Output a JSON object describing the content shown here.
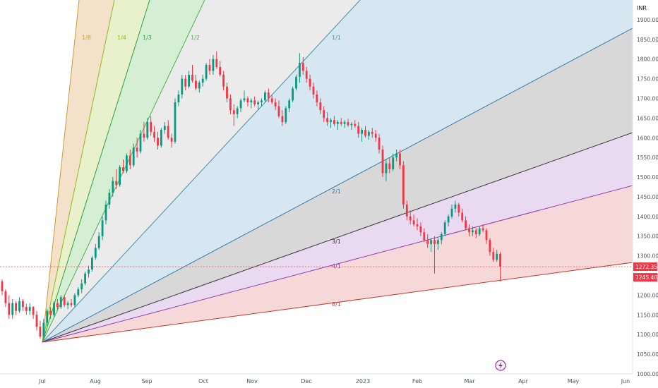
{
  "chart_data": {
    "type": "candlestick",
    "currency": "INR",
    "y_range": [
      1000,
      1950
    ],
    "y_ticks": [
      "1000.00",
      "1050.00",
      "1100.00",
      "1150.00",
      "1200.00",
      "1250.00",
      "1300.00",
      "1350.00",
      "1400.00",
      "1450.00",
      "1500.00",
      "1550.00",
      "1600.00",
      "1650.00",
      "1700.00",
      "1750.00",
      "1800.00",
      "1850.00",
      "1900.00"
    ],
    "x_labels": [
      "Jul",
      "Aug",
      "Sep",
      "Oct",
      "Nov",
      "Dec",
      "2023",
      "Feb",
      "Mar",
      "Apr",
      "May",
      "Jun"
    ],
    "price_tags": [
      {
        "label": "1272.35",
        "value": 1272.35,
        "color": "#f23645"
      },
      {
        "label": "1245.40",
        "value": 1245.4,
        "color": "#f23645"
      }
    ],
    "gann_fan": {
      "origin": {
        "date": "2022-07-01",
        "price": 1075
      },
      "lines": [
        {
          "label": "1/8",
          "color": "#c89b3c",
          "fill": "#f2dcc0"
        },
        {
          "label": "1/4",
          "color": "#8fb81a",
          "fill": "#e4efc2"
        },
        {
          "label": "1/3",
          "color": "#2e9f3c",
          "fill": "#cdeccd"
        },
        {
          "label": "1/2",
          "color": "#4caf50",
          "fill": "#e8e8e8"
        },
        {
          "label": "1/1",
          "color": "#4a8fa8",
          "fill": "#cfe3ef"
        },
        {
          "label": "2/1",
          "color": "#2f7da8",
          "fill": "#d1d1d1"
        },
        {
          "label": "3/1",
          "color": "#333333",
          "fill": "#e5d2ee"
        },
        {
          "label": "4/1",
          "color": "#8e3bb0",
          "fill": "#f3d1d0"
        },
        {
          "label": "8/1",
          "color": "#c0392b",
          "fill": ""
        }
      ]
    },
    "candles": [
      [
        1235,
        1240,
        1200,
        1210
      ],
      [
        1210,
        1215,
        1170,
        1180
      ],
      [
        1180,
        1200,
        1140,
        1150
      ],
      [
        1150,
        1190,
        1140,
        1180
      ],
      [
        1180,
        1185,
        1150,
        1160
      ],
      [
        1160,
        1195,
        1155,
        1185
      ],
      [
        1185,
        1190,
        1160,
        1170
      ],
      [
        1170,
        1178,
        1150,
        1160
      ],
      [
        1160,
        1180,
        1150,
        1170
      ],
      [
        1170,
        1172,
        1140,
        1150
      ],
      [
        1150,
        1160,
        1110,
        1120
      ],
      [
        1120,
        1135,
        1090,
        1095
      ],
      [
        1095,
        1140,
        1090,
        1130
      ],
      [
        1130,
        1165,
        1120,
        1160
      ],
      [
        1160,
        1170,
        1140,
        1150
      ],
      [
        1150,
        1185,
        1145,
        1180
      ],
      [
        1180,
        1190,
        1160,
        1170
      ],
      [
        1170,
        1200,
        1165,
        1195
      ],
      [
        1195,
        1200,
        1170,
        1175
      ],
      [
        1175,
        1185,
        1165,
        1180
      ],
      [
        1180,
        1190,
        1170,
        1175
      ],
      [
        1175,
        1205,
        1170,
        1200
      ],
      [
        1200,
        1220,
        1195,
        1215
      ],
      [
        1215,
        1240,
        1205,
        1230
      ],
      [
        1230,
        1260,
        1225,
        1255
      ],
      [
        1255,
        1275,
        1245,
        1265
      ],
      [
        1265,
        1300,
        1260,
        1295
      ],
      [
        1295,
        1330,
        1290,
        1320
      ],
      [
        1320,
        1360,
        1315,
        1350
      ],
      [
        1350,
        1400,
        1340,
        1390
      ],
      [
        1390,
        1440,
        1380,
        1430
      ],
      [
        1430,
        1470,
        1420,
        1460
      ],
      [
        1460,
        1500,
        1450,
        1490
      ],
      [
        1490,
        1520,
        1470,
        1480
      ],
      [
        1480,
        1530,
        1475,
        1525
      ],
      [
        1525,
        1545,
        1510,
        1515
      ],
      [
        1515,
        1560,
        1510,
        1555
      ],
      [
        1555,
        1570,
        1520,
        1530
      ],
      [
        1530,
        1585,
        1525,
        1575
      ],
      [
        1575,
        1600,
        1550,
        1565
      ],
      [
        1565,
        1620,
        1560,
        1610
      ],
      [
        1610,
        1640,
        1590,
        1600
      ],
      [
        1600,
        1650,
        1595,
        1640
      ],
      [
        1640,
        1655,
        1605,
        1615
      ],
      [
        1615,
        1630,
        1590,
        1600
      ],
      [
        1600,
        1615,
        1570,
        1580
      ],
      [
        1580,
        1625,
        1575,
        1620
      ],
      [
        1620,
        1640,
        1610,
        1630
      ],
      [
        1630,
        1645,
        1595,
        1600
      ],
      [
        1600,
        1610,
        1575,
        1590
      ],
      [
        1590,
        1700,
        1585,
        1690
      ],
      [
        1690,
        1720,
        1680,
        1710
      ],
      [
        1710,
        1760,
        1700,
        1750
      ],
      [
        1750,
        1760,
        1720,
        1730
      ],
      [
        1730,
        1770,
        1725,
        1760
      ],
      [
        1760,
        1785,
        1740,
        1745
      ],
      [
        1745,
        1760,
        1720,
        1725
      ],
      [
        1725,
        1745,
        1715,
        1740
      ],
      [
        1740,
        1760,
        1730,
        1750
      ],
      [
        1750,
        1790,
        1745,
        1785
      ],
      [
        1785,
        1800,
        1760,
        1770
      ],
      [
        1770,
        1810,
        1760,
        1800
      ],
      [
        1800,
        1820,
        1775,
        1780
      ],
      [
        1780,
        1795,
        1755,
        1760
      ],
      [
        1760,
        1770,
        1720,
        1730
      ],
      [
        1730,
        1740,
        1690,
        1700
      ],
      [
        1700,
        1710,
        1660,
        1670
      ],
      [
        1670,
        1685,
        1630,
        1660
      ],
      [
        1660,
        1680,
        1650,
        1675
      ],
      [
        1675,
        1700,
        1665,
        1695
      ],
      [
        1695,
        1720,
        1690,
        1700
      ],
      [
        1700,
        1705,
        1680,
        1690
      ],
      [
        1690,
        1700,
        1675,
        1695
      ],
      [
        1695,
        1705,
        1680,
        1685
      ],
      [
        1685,
        1695,
        1670,
        1690
      ],
      [
        1690,
        1700,
        1680,
        1695
      ],
      [
        1695,
        1720,
        1690,
        1715
      ],
      [
        1715,
        1725,
        1690,
        1700
      ],
      [
        1700,
        1710,
        1685,
        1690
      ],
      [
        1690,
        1700,
        1670,
        1680
      ],
      [
        1680,
        1695,
        1650,
        1655
      ],
      [
        1655,
        1670,
        1630,
        1640
      ],
      [
        1640,
        1680,
        1635,
        1675
      ],
      [
        1675,
        1700,
        1665,
        1695
      ],
      [
        1695,
        1730,
        1690,
        1725
      ],
      [
        1725,
        1760,
        1720,
        1755
      ],
      [
        1755,
        1815,
        1740,
        1790
      ],
      [
        1790,
        1805,
        1760,
        1770
      ],
      [
        1770,
        1780,
        1740,
        1750
      ],
      [
        1750,
        1760,
        1720,
        1730
      ],
      [
        1730,
        1740,
        1700,
        1710
      ],
      [
        1710,
        1720,
        1680,
        1690
      ],
      [
        1690,
        1700,
        1660,
        1670
      ],
      [
        1670,
        1680,
        1640,
        1650
      ],
      [
        1650,
        1665,
        1630,
        1640
      ],
      [
        1640,
        1650,
        1625,
        1645
      ],
      [
        1645,
        1655,
        1630,
        1635
      ],
      [
        1635,
        1645,
        1620,
        1640
      ],
      [
        1640,
        1650,
        1630,
        1635
      ],
      [
        1635,
        1645,
        1625,
        1640
      ],
      [
        1640,
        1648,
        1628,
        1632
      ],
      [
        1632,
        1640,
        1620,
        1635
      ],
      [
        1635,
        1645,
        1625,
        1630
      ],
      [
        1630,
        1640,
        1600,
        1610
      ],
      [
        1610,
        1625,
        1590,
        1620
      ],
      [
        1620,
        1630,
        1600,
        1605
      ],
      [
        1605,
        1620,
        1595,
        1615
      ],
      [
        1615,
        1625,
        1600,
        1610
      ],
      [
        1610,
        1620,
        1590,
        1600
      ],
      [
        1600,
        1610,
        1560,
        1570
      ],
      [
        1570,
        1580,
        1500,
        1510
      ],
      [
        1510,
        1545,
        1490,
        1535
      ],
      [
        1535,
        1550,
        1510,
        1520
      ],
      [
        1520,
        1560,
        1515,
        1550
      ],
      [
        1550,
        1570,
        1540,
        1560
      ],
      [
        1560,
        1570,
        1520,
        1530
      ],
      [
        1530,
        1540,
        1420,
        1430
      ],
      [
        1430,
        1440,
        1390,
        1400
      ],
      [
        1400,
        1415,
        1380,
        1390
      ],
      [
        1390,
        1405,
        1375,
        1380
      ],
      [
        1380,
        1395,
        1365,
        1375
      ],
      [
        1375,
        1385,
        1350,
        1360
      ],
      [
        1360,
        1370,
        1335,
        1340
      ],
      [
        1340,
        1355,
        1320,
        1330
      ],
      [
        1330,
        1345,
        1310,
        1340
      ],
      [
        1340,
        1350,
        1255,
        1330
      ],
      [
        1330,
        1345,
        1315,
        1340
      ],
      [
        1340,
        1360,
        1330,
        1355
      ],
      [
        1355,
        1390,
        1350,
        1385
      ],
      [
        1385,
        1405,
        1375,
        1400
      ],
      [
        1400,
        1430,
        1395,
        1420
      ],
      [
        1420,
        1440,
        1410,
        1430
      ],
      [
        1430,
        1435,
        1400,
        1410
      ],
      [
        1410,
        1420,
        1385,
        1390
      ],
      [
        1390,
        1400,
        1365,
        1370
      ],
      [
        1370,
        1380,
        1350,
        1360
      ],
      [
        1360,
        1375,
        1350,
        1365
      ],
      [
        1365,
        1370,
        1345,
        1355
      ],
      [
        1355,
        1375,
        1350,
        1370
      ],
      [
        1370,
        1380,
        1360,
        1365
      ],
      [
        1365,
        1370,
        1330,
        1340
      ],
      [
        1340,
        1345,
        1300,
        1310
      ],
      [
        1310,
        1320,
        1285,
        1290
      ],
      [
        1290,
        1315,
        1285,
        1305
      ],
      [
        1305,
        1310,
        1235,
        1272
      ]
    ]
  }
}
